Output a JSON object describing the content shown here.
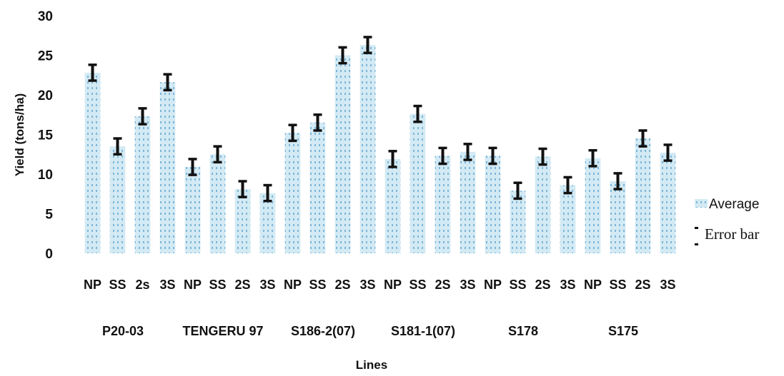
{
  "chart_data": {
    "type": "bar",
    "title": "",
    "ylabel": "Yield  (tons/ha)",
    "xlabel": "Lines",
    "ylim": [
      0,
      30
    ],
    "yticks": [
      0,
      5,
      10,
      15,
      20,
      25,
      30
    ],
    "grid": false,
    "legend_position": "right",
    "legend": [
      {
        "label": "Average",
        "symbol": "bar"
      },
      {
        "label": "Error bar",
        "symbol": "error"
      }
    ],
    "categories": [
      "NP",
      "SS",
      "2s",
      "3S",
      "NP",
      "SS",
      "2S",
      "3S",
      "NP",
      "SS",
      "2S",
      "3S",
      "NP",
      "SS",
      "2S",
      "3S",
      "NP",
      "SS",
      "2S",
      "3S",
      "NP",
      "SS",
      "2S",
      "3S"
    ],
    "groups": [
      {
        "label": "P20-03"
      },
      {
        "label": "TENGERU 97"
      },
      {
        "label": "S186-2(07)"
      },
      {
        "label": "S181-1(07)"
      },
      {
        "label": "S178"
      },
      {
        "label": "S175"
      }
    ],
    "series": [
      {
        "name": "Average",
        "values": [
          22.8,
          13.5,
          17.3,
          21.6,
          10.9,
          12.5,
          8.1,
          7.6,
          15.2,
          16.5,
          25.0,
          26.3,
          11.9,
          17.6,
          12.3,
          12.8,
          12.3,
          7.9,
          12.2,
          8.6,
          12.0,
          9.1,
          14.5,
          12.7
        ]
      }
    ],
    "error_bar": {
      "name": "Error bar",
      "values": [
        1.0,
        1.0,
        1.0,
        1.0,
        1.0,
        1.0,
        1.0,
        1.0,
        1.0,
        1.0,
        1.0,
        1.0,
        1.0,
        1.0,
        1.0,
        1.0,
        1.0,
        1.0,
        1.0,
        1.0,
        1.0,
        1.0,
        1.0,
        1.0
      ]
    },
    "colors": {
      "bar_fill": "#d3eaf4",
      "bar_dots": "#6fa9cf",
      "error_bar": "#111111"
    }
  }
}
